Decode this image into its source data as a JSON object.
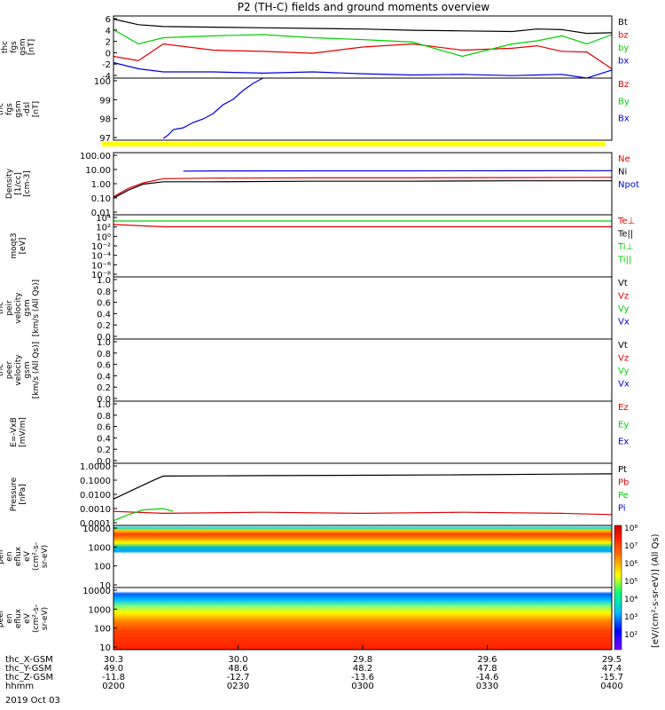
{
  "title": "P2 (TH-C) fields and ground moments overview",
  "date_label": "2019 Oct 03",
  "colors": {
    "black": "#000000",
    "red": "#e00000",
    "green": "#00d000",
    "blue": "#0000e0",
    "yellow": "#ffff00"
  },
  "chart_data": [
    {
      "type": "line",
      "ylabel": [
        "thc",
        "fgs",
        "gsm",
        "[nT]"
      ],
      "yticks": [
        "6",
        "4",
        "2",
        "0",
        "-2",
        "-4"
      ],
      "ylim": [
        -4,
        6
      ],
      "legend": [
        {
          "name": "Bt",
          "color": "#000000"
        },
        {
          "name": "bz",
          "color": "#e00000"
        },
        {
          "name": "by",
          "color": "#00d000"
        },
        {
          "name": "bx",
          "color": "#0000e0"
        }
      ],
      "series": [
        {
          "name": "Bt",
          "color": "#000000",
          "x": [
            0,
            0.05,
            0.1,
            0.2,
            0.3,
            0.4,
            0.5,
            0.6,
            0.7,
            0.8,
            0.85,
            0.9,
            0.95,
            1
          ],
          "y": [
            5.5,
            4.6,
            4.3,
            4.2,
            4.1,
            4.0,
            3.9,
            3.7,
            3.6,
            3.5,
            3.9,
            3.8,
            3.2,
            3.3
          ]
        },
        {
          "name": "bz",
          "color": "#e00000",
          "x": [
            0,
            0.05,
            0.1,
            0.2,
            0.3,
            0.4,
            0.5,
            0.6,
            0.7,
            0.8,
            0.85,
            0.9,
            0.95,
            1
          ],
          "y": [
            -0.5,
            -1.2,
            1.5,
            0.5,
            0.3,
            0.0,
            1.0,
            1.5,
            0.5,
            0.8,
            1.2,
            0.3,
            0.2,
            -2.5
          ]
        },
        {
          "name": "by",
          "color": "#00d000",
          "x": [
            0,
            0.05,
            0.1,
            0.2,
            0.3,
            0.4,
            0.5,
            0.6,
            0.7,
            0.8,
            0.85,
            0.9,
            0.95,
            1
          ],
          "y": [
            3.8,
            1.5,
            2.5,
            2.8,
            3.0,
            2.5,
            2.2,
            1.8,
            -0.5,
            1.5,
            2.0,
            2.8,
            1.5,
            3.0
          ]
        },
        {
          "name": "bx",
          "color": "#0000e0",
          "x": [
            0,
            0.05,
            0.1,
            0.2,
            0.3,
            0.4,
            0.5,
            0.6,
            0.7,
            0.8,
            0.85,
            0.9,
            0.95,
            1
          ],
          "y": [
            -1.5,
            -2.5,
            -3.0,
            -3.0,
            -3.2,
            -3.0,
            -3.3,
            -3.5,
            -3.4,
            -3.6,
            -3.5,
            -3.4,
            -4.0,
            -2.7
          ]
        }
      ]
    },
    {
      "type": "line",
      "ylabel": [
        "thc",
        "fgs",
        "gsm",
        "-dsl",
        "[nT]"
      ],
      "yticks": [
        "100",
        "99",
        "98",
        "97"
      ],
      "ylim": [
        96.5,
        100
      ],
      "legend": [
        {
          "name": "Bz",
          "color": "#e00000"
        },
        {
          "name": "By",
          "color": "#00d000"
        },
        {
          "name": "Bx",
          "color": "#0000e0"
        }
      ],
      "series": [
        {
          "name": "Bx",
          "color": "#0000e0",
          "x": [
            0.1,
            0.11,
            0.12,
            0.14,
            0.16,
            0.18,
            0.2,
            0.22,
            0.24,
            0.26,
            0.28,
            0.3
          ],
          "y": [
            96.6,
            96.8,
            97.1,
            97.2,
            97.5,
            97.7,
            98.0,
            98.5,
            98.8,
            99.3,
            99.7,
            100
          ]
        }
      ]
    },
    {
      "type": "line",
      "ylabel": [
        "Density",
        "[1/cc]",
        "[cm-3]"
      ],
      "yticks": [
        "100.00",
        "10.00",
        "1.00",
        "0.10",
        "0.01"
      ],
      "ylim": [
        0.005,
        150
      ],
      "log": true,
      "legend": [
        {
          "name": "Ne",
          "color": "#e00000"
        },
        {
          "name": "Ni",
          "color": "#000000"
        },
        {
          "name": "Npot",
          "color": "#0000e0"
        },
        {
          "name": "",
          "color": "#000000"
        }
      ],
      "series": [
        {
          "name": "Ne",
          "color": "#e00000",
          "x": [
            0,
            0.03,
            0.06,
            0.1,
            0.2,
            0.4,
            0.6,
            0.8,
            1
          ],
          "y": [
            0.1,
            0.4,
            1.0,
            2.0,
            2.2,
            2.3,
            2.3,
            2.4,
            2.5
          ]
        },
        {
          "name": "Ni",
          "color": "#000000",
          "x": [
            0,
            0.03,
            0.06,
            0.1,
            0.2,
            0.4,
            0.6,
            0.8,
            1
          ],
          "y": [
            0.08,
            0.3,
            0.8,
            1.2,
            1.2,
            1.3,
            1.3,
            1.4,
            1.4
          ]
        },
        {
          "name": "Npot",
          "color": "#0000e0",
          "x": [
            0.14,
            0.2,
            0.4,
            0.6,
            0.8,
            1
          ],
          "y": [
            7,
            7.2,
            7.3,
            7.3,
            7.4,
            7.5
          ]
        }
      ]
    },
    {
      "type": "line",
      "ylabel": [
        "moqt3",
        "[eV]"
      ],
      "yticks": [
        "10⁴",
        "10²",
        "10⁰",
        "10⁻²",
        "10⁻⁴",
        "10⁻⁶",
        "10⁻⁸"
      ],
      "ylim": [
        -9,
        5
      ],
      "legend": [
        {
          "name": "Te⊥",
          "color": "#e00000"
        },
        {
          "name": "Te||",
          "color": "#000000"
        },
        {
          "name": "Ti⊥",
          "color": "#00d000"
        },
        {
          "name": "Ti||",
          "color": "#00d000"
        }
      ],
      "series": [
        {
          "name": "Ti",
          "color": "#00d000",
          "x": [
            0,
            1
          ],
          "y": [
            3.6,
            3.6
          ]
        },
        {
          "name": "Te",
          "color": "#e00000",
          "x": [
            0,
            0.1,
            1
          ],
          "y": [
            2.8,
            2.3,
            2.3
          ]
        }
      ]
    },
    {
      "type": "line",
      "ylabel": [
        "thc",
        "peir",
        "velocity",
        "gsm",
        "[km/s (All Qs)]"
      ],
      "yticks": [
        "1.0",
        "0.8",
        "0.6",
        "0.4",
        "0.2",
        "0.0"
      ],
      "ylim": [
        0,
        1
      ],
      "legend": [
        {
          "name": "Vt",
          "color": "#000000"
        },
        {
          "name": "Vz",
          "color": "#e00000"
        },
        {
          "name": "Vy",
          "color": "#00d000"
        },
        {
          "name": "Vx",
          "color": "#0000e0"
        }
      ],
      "series": []
    },
    {
      "type": "line",
      "ylabel": [
        "thc",
        "peer",
        "velocity",
        "gsm",
        "[km/s (All Qs)]"
      ],
      "yticks": [
        "1.0",
        "0.8",
        "0.6",
        "0.4",
        "0.2",
        "0.0"
      ],
      "ylim": [
        0,
        1
      ],
      "legend": [
        {
          "name": "Vt",
          "color": "#000000"
        },
        {
          "name": "Vz",
          "color": "#e00000"
        },
        {
          "name": "Vy",
          "color": "#00d000"
        },
        {
          "name": "Vx",
          "color": "#0000e0"
        }
      ],
      "series": []
    },
    {
      "type": "line",
      "ylabel": [
        "E=-VxB",
        "[mV/m]"
      ],
      "yticks": [
        "1.0",
        "0.8",
        "0.6",
        "0.4",
        "0.2",
        "0.0"
      ],
      "ylim": [
        0,
        1
      ],
      "legend": [
        {
          "name": "Ez",
          "color": "#e00000"
        },
        {
          "name": "Ey",
          "color": "#00d000"
        },
        {
          "name": "Ex",
          "color": "#0000e0"
        }
      ],
      "series": []
    },
    {
      "type": "line",
      "ylabel": [
        "Pressure",
        "[nPa]"
      ],
      "yticks": [
        "1.0000",
        "0.1000",
        "0.0100",
        "0.0010",
        "0.0001"
      ],
      "ylim": [
        0.0001,
        1
      ],
      "log": true,
      "legend": [
        {
          "name": "Pt",
          "color": "#000000"
        },
        {
          "name": "Pb",
          "color": "#e00000"
        },
        {
          "name": "Pe",
          "color": "#00d000"
        },
        {
          "name": "Pi",
          "color": "#0000e0"
        }
      ],
      "series": [
        {
          "name": "Pt",
          "color": "#000000",
          "x": [
            0,
            0.04,
            0.08,
            0.1,
            0.3,
            0.5,
            0.7,
            0.9,
            1
          ],
          "y": [
            0.005,
            0.02,
            0.08,
            0.15,
            0.16,
            0.17,
            0.18,
            0.2,
            0.21
          ]
        },
        {
          "name": "Pb",
          "color": "#e00000",
          "x": [
            0,
            0.1,
            0.3,
            0.5,
            0.7,
            0.9,
            1
          ],
          "y": [
            0.0008,
            0.0006,
            0.0007,
            0.0006,
            0.0007,
            0.0006,
            0.0005
          ]
        },
        {
          "name": "Pe",
          "color": "#00d000",
          "x": [
            0,
            0.03,
            0.06,
            0.1,
            0.12
          ],
          "y": [
            0.0002,
            0.0005,
            0.001,
            0.0012,
            0.0008
          ]
        }
      ]
    },
    {
      "type": "heatmap",
      "ylabel": [
        "thc",
        "peir",
        "en",
        "eflux",
        "eV",
        "(cm²-s-",
        "sr-eV)"
      ],
      "yticks": [
        "10000",
        "1000",
        "100",
        "10"
      ],
      "ylim": [
        5,
        20000
      ],
      "log": true
    },
    {
      "type": "heatmap",
      "ylabel": [
        "thc",
        "peer",
        "en",
        "eflux",
        "eV",
        "(cm²-s-",
        "sr-eV)"
      ],
      "yticks": [
        "10000",
        "1000",
        "100",
        "10"
      ],
      "ylim": [
        5,
        20000
      ],
      "log": true
    }
  ],
  "colorbar": {
    "ticks": [
      "10⁸",
      "10⁷",
      "10⁶",
      "10⁵",
      "10⁴",
      "10³",
      "10²"
    ],
    "label": "[eV/(cm²-s-sr-eV)] (All Qs)"
  },
  "x_axis": {
    "rows": [
      {
        "name": "thc_X-GSM",
        "values": [
          "30.3",
          "30.0",
          "29.8",
          "29.6",
          "29.5"
        ]
      },
      {
        "name": "thc_Y-GSM",
        "values": [
          "49.0",
          "48.6",
          "48.2",
          "47.8",
          "47.4"
        ]
      },
      {
        "name": "thc_Z-GSM",
        "values": [
          "-11.8",
          "-12.7",
          "-13.6",
          "-14.6",
          "-15.7"
        ]
      },
      {
        "name": "hhmm",
        "values": [
          "0200",
          "0230",
          "0300",
          "0330",
          "0400"
        ]
      }
    ]
  }
}
